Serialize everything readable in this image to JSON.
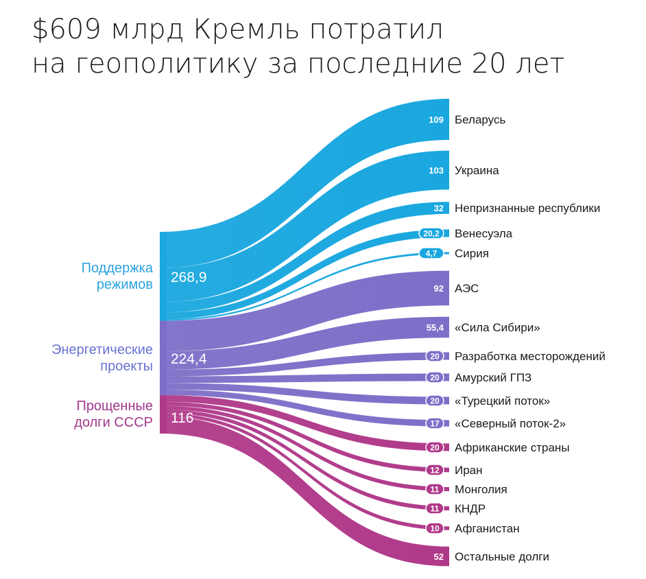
{
  "title": {
    "line1": "$609 млрд Кремль потратил",
    "line2": "на геополитику за последние 20 лет"
  },
  "colors": {
    "support": "#1aa7df",
    "energy": "#7d6fc8",
    "debts": "#b03a8a",
    "support_label": "#2ba3dc",
    "energy_label": "#6a72d4",
    "debts_label": "#a1388b"
  },
  "chart_data": {
    "type": "sankey",
    "title": "$609 млрд Кремль потратил на геополитику за последние 20 лет",
    "sources": [
      {
        "id": "support",
        "label_lines": [
          "Поддержка",
          "режимов"
        ],
        "value": 268.9,
        "value_label": "268,9"
      },
      {
        "id": "energy",
        "label_lines": [
          "Энергетические",
          "проекты"
        ],
        "value": 224.4,
        "value_label": "224,4"
      },
      {
        "id": "debts",
        "label_lines": [
          "Прощенные",
          "долги СССР"
        ],
        "value": 116,
        "value_label": "116"
      }
    ],
    "targets": [
      {
        "source": "support",
        "label": "Беларусь",
        "value": 109,
        "value_label": "109"
      },
      {
        "source": "support",
        "label": "Украина",
        "value": 103,
        "value_label": "103"
      },
      {
        "source": "support",
        "label": "Непризнанные республики",
        "value": 32,
        "value_label": "32"
      },
      {
        "source": "support",
        "label": "Венесуэла",
        "value": 20.2,
        "value_label": "20,2"
      },
      {
        "source": "support",
        "label": "Сирия",
        "value": 4.7,
        "value_label": "4,7"
      },
      {
        "source": "energy",
        "label": "АЭС",
        "value": 92,
        "value_label": "92"
      },
      {
        "source": "energy",
        "label": "«Сила Сибири»",
        "value": 55.4,
        "value_label": "55,4"
      },
      {
        "source": "energy",
        "label": "Разработка месторождений",
        "value": 20,
        "value_label": "20"
      },
      {
        "source": "energy",
        "label": "Амурский ГПЗ",
        "value": 20,
        "value_label": "20"
      },
      {
        "source": "energy",
        "label": "«Турецкий поток»",
        "value": 20,
        "value_label": "20"
      },
      {
        "source": "energy",
        "label": "«Северный поток-2»",
        "value": 17,
        "value_label": "17"
      },
      {
        "source": "debts",
        "label": "Африканские страны",
        "value": 20,
        "value_label": "20"
      },
      {
        "source": "debts",
        "label": "Иран",
        "value": 12,
        "value_label": "12"
      },
      {
        "source": "debts",
        "label": "Монголия",
        "value": 11,
        "value_label": "11"
      },
      {
        "source": "debts",
        "label": "КНДР",
        "value": 11,
        "value_label": "11"
      },
      {
        "source": "debts",
        "label": "Афганистан",
        "value": 10,
        "value_label": "10"
      },
      {
        "source": "debts",
        "label": "Остальные долги",
        "value": 52,
        "value_label": "52"
      }
    ]
  }
}
